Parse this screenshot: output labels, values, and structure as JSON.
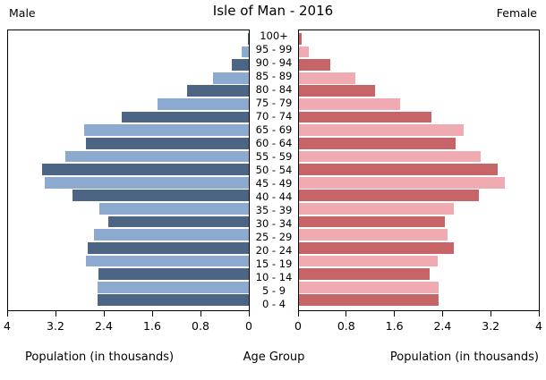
{
  "header": {
    "male_label": "Male",
    "title": "Isle of Man - 2016",
    "female_label": "Female"
  },
  "footer": {
    "left_axis_label": "Population (in thousands)",
    "center_label": "Age Group",
    "right_axis_label": "Population (in thousands)"
  },
  "colors": {
    "male_dark": "#4d6585",
    "male_light": "#8caad0",
    "female_dark": "#c66468",
    "female_light": "#f0aab2",
    "axis": "#000000",
    "background": "#ffffff"
  },
  "chart_data": {
    "type": "bar",
    "subtype": "population-pyramid",
    "title": "Isle of Man - 2016",
    "units": "thousands",
    "center_axis_label": "Age Group",
    "xlabel": "Population (in thousands)",
    "categories": [
      "100+",
      "95 - 99",
      "90 - 94",
      "85 - 89",
      "80 - 84",
      "75 - 79",
      "70 - 74",
      "65 - 69",
      "60 - 64",
      "55 - 59",
      "50 - 54",
      "45 - 49",
      "40 - 44",
      "35 - 39",
      "30 - 34",
      "25 - 29",
      "20 - 24",
      "15 - 19",
      "10 - 14",
      "5 - 9",
      "0 - 4"
    ],
    "categories_order": "top-to-bottom",
    "series": [
      {
        "name": "Male",
        "side": "left",
        "values": [
          0.02,
          0.12,
          0.28,
          0.59,
          1.02,
          1.52,
          2.11,
          2.74,
          2.71,
          3.05,
          3.43,
          3.39,
          2.93,
          2.48,
          2.34,
          2.57,
          2.68,
          2.7,
          2.5,
          2.52,
          2.52
        ]
      },
      {
        "name": "Female",
        "side": "right",
        "values": [
          0.04,
          0.17,
          0.52,
          0.94,
          1.27,
          1.68,
          2.21,
          2.74,
          2.61,
          3.03,
          3.32,
          3.43,
          3.0,
          2.58,
          2.44,
          2.48,
          2.58,
          2.32,
          2.18,
          2.33,
          2.33
        ]
      }
    ],
    "xlim_each_side": [
      0,
      4
    ],
    "x_ticks": [
      0,
      0.8,
      1.6,
      2.4,
      3.2,
      4
    ],
    "left_axis_tick_labels_ltr": [
      "4",
      "3.2",
      "2.4",
      "1.6",
      "0.8",
      "0"
    ],
    "right_axis_tick_labels_ltr": [
      "0",
      "0.8",
      "1.6",
      "2.4",
      "3.2",
      "4"
    ],
    "grid": false,
    "legend_position": "none",
    "bar_color_pattern": "alternating dark/light per age row"
  }
}
